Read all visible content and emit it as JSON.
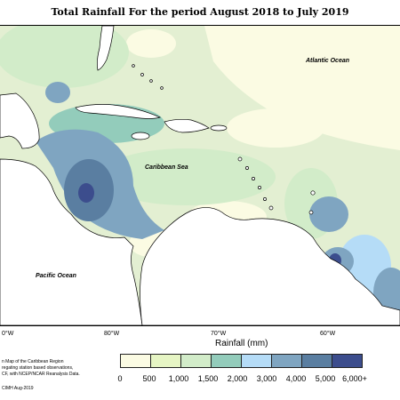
{
  "title": "Total Rainfall For the period August 2018 to July 2019",
  "map": {
    "labels": {
      "atlantic": "Atlantic Ocean",
      "caribbean": "Caribbean Sea",
      "pacific": "Pacific Ocean"
    },
    "lon_ticks": [
      "0°W",
      "80°W",
      "70°W",
      "60°W"
    ]
  },
  "legend": {
    "title": "Rainfall (mm)",
    "labels": [
      "0",
      "500",
      "1,000",
      "1,500",
      "2,000",
      "3,000",
      "4,000",
      "5,000",
      "6,000+"
    ],
    "colors": [
      "#fbfbe3",
      "#e6f5c4",
      "#d2ecc9",
      "#93ccbb",
      "#b5dcf7",
      "#7fa5c1",
      "#5a7ea1",
      "#3c4d8d"
    ]
  },
  "credit": {
    "line1": "n Map of the Caribbean Region",
    "line2": "regating station based observations,",
    "line3": "CF, with NCEP/NCAR Reanalysis Data.",
    "line4": "CIMH Aug-2019"
  }
}
